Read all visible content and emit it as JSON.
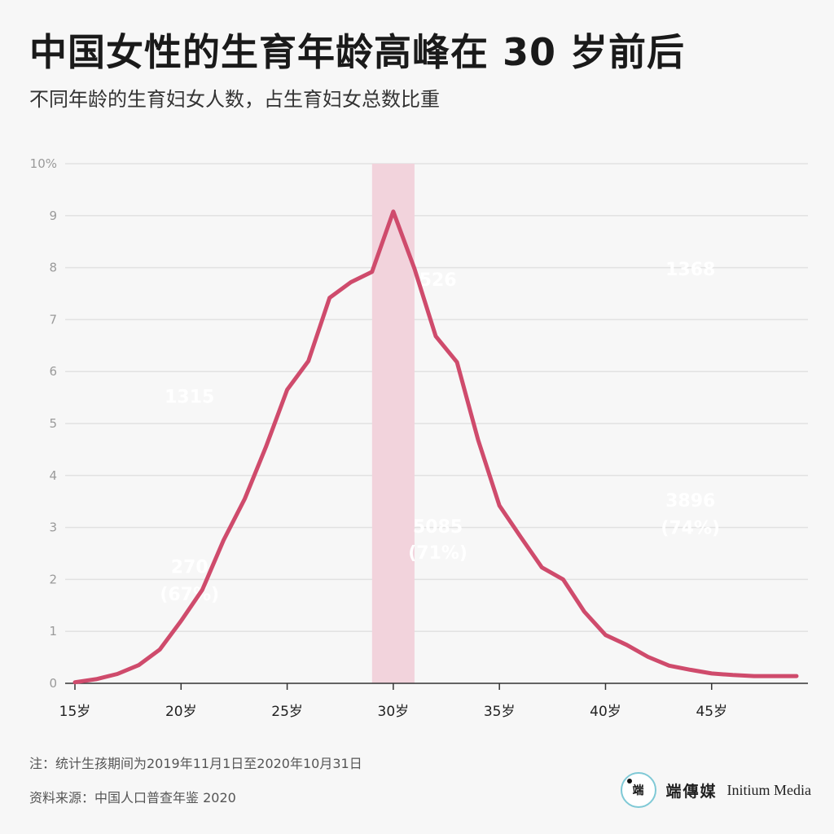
{
  "header": {
    "title": "中国女性的生育年龄高峰在 30 岁前后",
    "subtitle": "不同年龄的生育妇女人数，占生育妇女总数比重"
  },
  "chart_data": {
    "type": "line",
    "title": "中国女性的生育年龄高峰在 30 岁前后",
    "subtitle": "不同年龄的生育妇女人数，占生育妇女总数比重",
    "x": [
      15,
      16,
      17,
      18,
      19,
      20,
      21,
      22,
      23,
      24,
      25,
      26,
      27,
      28,
      29,
      30,
      31,
      32,
      33,
      34,
      35,
      36,
      37,
      38,
      39,
      40,
      41,
      42,
      43,
      44,
      45,
      46,
      47,
      48,
      49
    ],
    "series": [
      {
        "values": [
          0.02,
          0.08,
          0.18,
          0.35,
          0.65,
          1.2,
          1.8,
          2.75,
          3.55,
          4.55,
          5.65,
          6.2,
          7.42,
          7.72,
          7.92,
          9.08,
          7.98,
          6.68,
          6.18,
          4.68,
          3.42,
          2.82,
          2.23,
          2.0,
          1.38,
          0.93,
          0.74,
          0.51,
          0.34,
          0.26,
          0.19,
          0.16,
          0.14,
          0.14,
          0.14
        ],
        "color": "#cf4b6c"
      }
    ],
    "xlim": [
      15,
      49
    ],
    "ylim": [
      0,
      10
    ],
    "yticks": [
      0,
      1,
      2,
      3,
      4,
      5,
      6,
      7,
      8,
      9,
      10
    ],
    "ytick_labels": [
      "0",
      "1",
      "2",
      "3",
      "4",
      "5",
      "6",
      "7",
      "8",
      "9",
      "10%"
    ],
    "xticks": [
      15,
      20,
      25,
      30,
      35,
      40,
      45
    ],
    "xtick_labels": [
      "15岁",
      "20岁",
      "25岁",
      "30岁",
      "35岁",
      "40岁",
      "45岁"
    ],
    "highlight": {
      "from": 29,
      "to": 31,
      "color": "#f2d3dc"
    },
    "grid": true,
    "faded_labels": [
      {
        "text": "1315",
        "x": 20.4,
        "y": 5.4
      },
      {
        "text": "270",
        "x": 20.4,
        "y": 2.12
      },
      {
        "text": "(67%)",
        "x": 20.4,
        "y": 1.6
      },
      {
        "text": "526",
        "x": 32.1,
        "y": 7.65
      },
      {
        "text": "5085",
        "x": 32.1,
        "y": 2.9
      },
      {
        "text": "(71%)",
        "x": 32.1,
        "y": 2.4
      },
      {
        "text": "1368",
        "x": 44.0,
        "y": 7.85
      },
      {
        "text": "3896",
        "x": 44.0,
        "y": 3.4
      },
      {
        "text": "(74%)",
        "x": 44.0,
        "y": 2.88
      }
    ]
  },
  "footer": {
    "note": "注：统计生孩期间为2019年11月1日至2020年10月31日",
    "source": "资料来源：中国人口普查年鉴 2020",
    "brand_cn": "端傳媒",
    "brand_en": "Initium Media",
    "logo_glyph": "端",
    "logo_icon": "initium-logo-icon"
  }
}
